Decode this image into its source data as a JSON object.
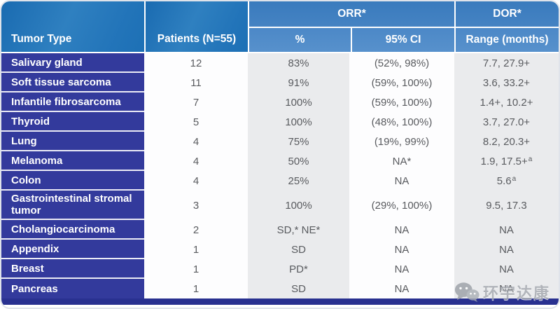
{
  "header": {
    "tumor_type": "Tumor Type",
    "patients": "Patients (N=55)",
    "orr": "ORR*",
    "dor": "DOR*",
    "sub_pct": "%",
    "sub_ci": "95% CI",
    "sub_range": "Range (months)"
  },
  "rows": [
    {
      "tumor": "Salivary gland",
      "patients": "12",
      "pct": "83%",
      "ci": "(52%, 98%)",
      "range": "7.7, 27.9+",
      "range_sup": ""
    },
    {
      "tumor": "Soft tissue sarcoma",
      "patients": "11",
      "pct": "91%",
      "ci": "(59%, 100%)",
      "range": "3.6, 33.2+",
      "range_sup": ""
    },
    {
      "tumor": "Infantile fibrosarcoma",
      "patients": "7",
      "pct": "100%",
      "ci": "(59%, 100%)",
      "range": "1.4+, 10.2+",
      "range_sup": ""
    },
    {
      "tumor": "Thyroid",
      "patients": "5",
      "pct": "100%",
      "ci": "(48%, 100%)",
      "range": "3.7, 27.0+",
      "range_sup": ""
    },
    {
      "tumor": "Lung",
      "patients": "4",
      "pct": "75%",
      "ci": "(19%, 99%)",
      "range": "8.2, 20.3+",
      "range_sup": ""
    },
    {
      "tumor": "Melanoma",
      "patients": "4",
      "pct": "50%",
      "ci": "NA*",
      "range": "1.9, 17.5+",
      "range_sup": "a"
    },
    {
      "tumor": "Colon",
      "patients": "4",
      "pct": "25%",
      "ci": "NA",
      "range": "5.6",
      "range_sup": "a"
    },
    {
      "tumor": "Gastrointestinal stromal tumor",
      "patients": "3",
      "pct": "100%",
      "ci": "(29%, 100%)",
      "range": "9.5, 17.3",
      "range_sup": ""
    },
    {
      "tumor": "Cholangiocarcinoma",
      "patients": "2",
      "pct": "SD,* NE*",
      "ci": "NA",
      "range": "NA",
      "range_sup": ""
    },
    {
      "tumor": "Appendix",
      "patients": "1",
      "pct": "SD",
      "ci": "NA",
      "range": "NA",
      "range_sup": ""
    },
    {
      "tumor": "Breast",
      "patients": "1",
      "pct": "PD*",
      "ci": "NA",
      "range": "NA",
      "range_sup": ""
    },
    {
      "tumor": "Pancreas",
      "patients": "1",
      "pct": "SD",
      "ci": "NA",
      "range": "NA",
      "range_sup": ""
    }
  ],
  "watermark": {
    "icon": "wechat-icon",
    "text": "环宇达康"
  },
  "colors": {
    "header_blue": "#2274b9",
    "header_light_blue": "#4583c3",
    "subheader_blue": "#5791cc",
    "row_indigo": "#333a9c",
    "column_gray": "#eaebed",
    "column_white": "#fdfdfe",
    "data_text_gray": "#595b5f",
    "footer_navy": "#293190"
  },
  "chart_data": {
    "type": "table",
    "title": "",
    "columns": [
      "Tumor Type",
      "Patients (N=55)",
      "ORR* %",
      "ORR* 95% CI",
      "DOR* Range (months)"
    ],
    "rows": [
      [
        "Salivary gland",
        "12",
        "83%",
        "(52%, 98%)",
        "7.7, 27.9+"
      ],
      [
        "Soft tissue sarcoma",
        "11",
        "91%",
        "(59%, 100%)",
        "3.6, 33.2+"
      ],
      [
        "Infantile fibrosarcoma",
        "7",
        "100%",
        "(59%, 100%)",
        "1.4+, 10.2+"
      ],
      [
        "Thyroid",
        "5",
        "100%",
        "(48%, 100%)",
        "3.7, 27.0+"
      ],
      [
        "Lung",
        "4",
        "75%",
        "(19%, 99%)",
        "8.2, 20.3+"
      ],
      [
        "Melanoma",
        "4",
        "50%",
        "NA*",
        "1.9, 17.5+a"
      ],
      [
        "Colon",
        "4",
        "25%",
        "NA",
        "5.6a"
      ],
      [
        "Gastrointestinal stromal tumor",
        "3",
        "100%",
        "(29%, 100%)",
        "9.5, 17.3"
      ],
      [
        "Cholangiocarcinoma",
        "2",
        "SD,* NE*",
        "NA",
        "NA"
      ],
      [
        "Appendix",
        "1",
        "SD",
        "NA",
        "NA"
      ],
      [
        "Breast",
        "1",
        "PD*",
        "NA",
        "NA"
      ],
      [
        "Pancreas",
        "1",
        "SD",
        "NA",
        "NA"
      ]
    ]
  }
}
